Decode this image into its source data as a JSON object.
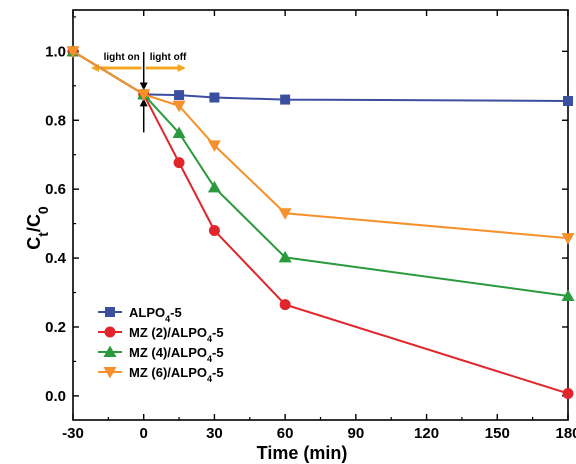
{
  "chart_data": {
    "type": "line",
    "xlabel": "Time (min)",
    "ylabel": "Ct/C0",
    "ylabel_parts": {
      "main": "C",
      "sub1": "t",
      "slash": "/C",
      "sub2": "0"
    },
    "xlim": [
      -30,
      180
    ],
    "ylim": [
      -0.07,
      1.12
    ],
    "x_ticks": [
      -30,
      0,
      30,
      60,
      90,
      120,
      150,
      180
    ],
    "x_tick_labels": [
      "-30",
      "0",
      "30",
      "60",
      "90",
      "120",
      "150",
      "180"
    ],
    "y_ticks": [
      0.0,
      0.2,
      0.4,
      0.6,
      0.8,
      1.0
    ],
    "y_tick_labels": [
      "0.0",
      "0.2",
      "0.4",
      "0.6",
      "0.8",
      "1.0"
    ],
    "x": [
      -30,
      0,
      15,
      30,
      60,
      180
    ],
    "series": [
      {
        "name": "ALPO4-5",
        "name_parts": {
          "main": "ALPO",
          "sub": "4",
          "rest": "-5"
        },
        "marker": "square",
        "color": "#3b4fa0",
        "values": [
          1.0,
          0.875,
          0.873,
          0.866,
          0.86,
          0.856
        ]
      },
      {
        "name": "MZ (2)/ALPO4-5",
        "name_parts": {
          "main": "MZ (2)/ALPO",
          "sub": "4",
          "rest": "-5"
        },
        "marker": "circle",
        "color": "#e0262b",
        "values": [
          1.0,
          0.875,
          0.677,
          0.48,
          0.265,
          0.007
        ]
      },
      {
        "name": "MZ (4)/ALPO4-5",
        "name_parts": {
          "main": "MZ (4)/ALPO",
          "sub": "4",
          "rest": "-5"
        },
        "marker": "triangle-up",
        "color": "#2a9a3c",
        "values": [
          1.0,
          0.875,
          0.763,
          0.605,
          0.402,
          0.29
        ]
      },
      {
        "name": "MZ (6)/ALPO4-5",
        "name_parts": {
          "main": "MZ (6)/ALPO",
          "sub": "4",
          "rest": "-5"
        },
        "marker": "triangle-down",
        "color": "#f5902a",
        "values": [
          1.0,
          0.875,
          0.842,
          0.727,
          0.53,
          0.458
        ]
      }
    ],
    "annotations": {
      "light_on": "light on",
      "light_off": "light off",
      "arrow_color": "#f5a623"
    },
    "legend_position": "bottom-left",
    "grid": false
  }
}
